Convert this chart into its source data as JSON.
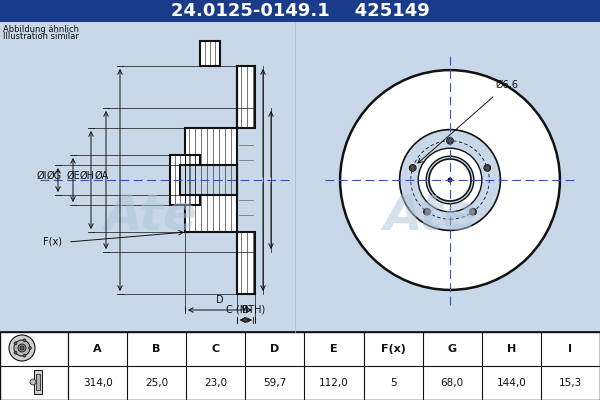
{
  "title_part": "24.0125-0149.1",
  "title_code": "425149",
  "subtitle1": "Abbildung ähnlich",
  "subtitle2": "Illustration similar",
  "header_bg": "#1a3a8a",
  "header_fg": "#ffffff",
  "drawing_bg": "#c8d8e8",
  "table_bg": "#ffffff",
  "line_color": "#111111",
  "dim_color": "#111111",
  "cross_color": "#3355aa",
  "table_headers": [
    "A",
    "B",
    "C",
    "D",
    "E",
    "F(x)",
    "G",
    "H",
    "I"
  ],
  "table_values": [
    "314,0",
    "25,0",
    "23,0",
    "59,7",
    "112,0",
    "5",
    "68,0",
    "144,0",
    "15,3"
  ],
  "hole_label": "Ø6,6",
  "watermark": "Ate"
}
